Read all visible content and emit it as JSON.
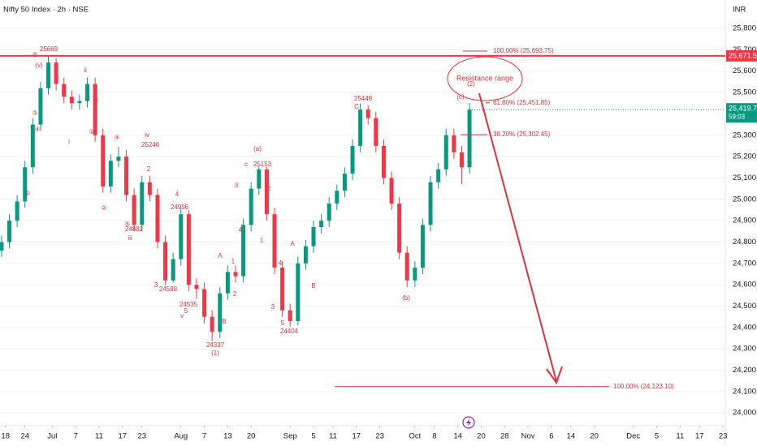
{
  "header": {
    "title": "Nifty 50 Index · 2h · NSE",
    "currency": "INR"
  },
  "chart_data": {
    "type": "candlestick",
    "xlim": [
      -0.4,
      185.6
    ],
    "xticks": [
      {
        "value": 1,
        "label": "18"
      },
      {
        "value": 6,
        "label": "24"
      },
      {
        "value": 13,
        "label": "Jul"
      },
      {
        "value": 19,
        "label": "7"
      },
      {
        "value": 25,
        "label": "11"
      },
      {
        "value": 31,
        "label": "17"
      },
      {
        "value": 36,
        "label": "23"
      },
      {
        "value": 46,
        "label": "Aug"
      },
      {
        "value": 52,
        "label": "7"
      },
      {
        "value": 58,
        "label": "13"
      },
      {
        "value": 64,
        "label": "20"
      },
      {
        "value": 74,
        "label": "Sep"
      },
      {
        "value": 80,
        "label": "5"
      },
      {
        "value": 85,
        "label": "11"
      },
      {
        "value": 91,
        "label": "17"
      },
      {
        "value": 97,
        "label": "23"
      },
      {
        "value": 106,
        "label": "Oct"
      },
      {
        "value": 111,
        "label": "8"
      },
      {
        "value": 117,
        "label": "14"
      },
      {
        "value": 123,
        "label": "20"
      },
      {
        "value": 129,
        "label": "28"
      },
      {
        "value": 135,
        "label": "Nov"
      },
      {
        "value": 141,
        "label": "6"
      },
      {
        "value": 146,
        "label": "14"
      },
      {
        "value": 152,
        "label": "20"
      },
      {
        "value": 162,
        "label": "Dec"
      },
      {
        "value": 168,
        "label": "5"
      },
      {
        "value": 174,
        "label": "11"
      },
      {
        "value": 179,
        "label": "17"
      },
      {
        "value": 185,
        "label": "23"
      }
    ],
    "ylim": [
      23940,
      25933
    ],
    "yticks": [
      {
        "value": 24000,
        "label": "24,000.00"
      },
      {
        "value": 24100,
        "label": "24,100.00"
      },
      {
        "value": 24200,
        "label": "24,200.00"
      },
      {
        "value": 24300,
        "label": "24,300.00"
      },
      {
        "value": 24400,
        "label": "24,400.00"
      },
      {
        "value": 24500,
        "label": "24,500.00"
      },
      {
        "value": 24600,
        "label": "24,600.00"
      },
      {
        "value": 24700,
        "label": "24,700.00"
      },
      {
        "value": 24800,
        "label": "24,800.00"
      },
      {
        "value": 24900,
        "label": "24,900.00"
      },
      {
        "value": 25000,
        "label": "25,000.00"
      },
      {
        "value": 25100,
        "label": "25,100.00"
      },
      {
        "value": 25200,
        "label": "25,200.00"
      },
      {
        "value": 25300,
        "label": "25,300.00"
      },
      {
        "value": 25500,
        "label": "25,500.00"
      },
      {
        "value": 25600,
        "label": "25,600.00"
      },
      {
        "value": 25700,
        "label": "25,700.00"
      },
      {
        "value": 25800,
        "label": "25,800.00"
      }
    ],
    "up_color": "#089981",
    "down_color": "#f23645",
    "x": [
      0,
      2,
      4,
      6,
      8,
      10,
      12,
      14,
      16,
      18,
      20,
      22,
      24,
      26,
      28,
      30,
      32,
      34,
      36,
      38,
      40,
      42,
      44,
      46,
      48,
      50,
      52,
      54,
      56,
      58,
      60,
      62,
      64,
      66,
      68,
      70,
      72,
      74,
      76,
      78,
      80,
      82,
      84,
      86,
      88,
      90,
      92,
      94,
      96,
      98,
      100,
      102,
      104,
      106,
      108,
      110,
      112,
      114,
      116,
      118,
      120
    ],
    "open": [
      24760,
      24800,
      24900,
      24990,
      25150,
      25350,
      25520,
      25640,
      25540,
      25480,
      25450,
      25460,
      25540,
      25300,
      25060,
      25180,
      25200,
      25020,
      24880,
      25080,
      25020,
      24800,
      24620,
      24720,
      24930,
      24600,
      24580,
      24450,
      24380,
      24560,
      24660,
      24640,
      24880,
      25050,
      25140,
      24930,
      24680,
      24480,
      24430,
      24700,
      24780,
      24870,
      24900,
      24980,
      25040,
      25120,
      25250,
      25420,
      25380,
      25250,
      25100,
      24980,
      24750,
      24620,
      24680,
      24880,
      25080,
      25140,
      25300,
      25220,
      25150
    ],
    "high": [
      24830,
      24930,
      25020,
      25180,
      25380,
      25550,
      25669,
      25660,
      25570,
      25510,
      25490,
      25570,
      25570,
      25330,
      25210,
      25246,
      25230,
      25050,
      25110,
      25110,
      25050,
      24830,
      24750,
      24956,
      24950,
      24630,
      24610,
      24480,
      24590,
      24690,
      24690,
      24910,
      25080,
      25153,
      25150,
      24960,
      24710,
      24510,
      24730,
      24810,
      24900,
      24930,
      25010,
      25070,
      25150,
      25280,
      25449,
      25440,
      25410,
      25280,
      25130,
      25010,
      24780,
      24710,
      24910,
      25110,
      25170,
      25330,
      25330,
      25250,
      25451
    ],
    "low": [
      24730,
      24770,
      24870,
      24960,
      25120,
      25320,
      25490,
      25510,
      25450,
      25420,
      25420,
      25430,
      25270,
      25030,
      25030,
      25150,
      24990,
      24850,
      24850,
      24990,
      24770,
      24598,
      24610,
      24690,
      24570,
      24535,
      24420,
      24337,
      24350,
      24530,
      24610,
      24610,
      24850,
      25020,
      24900,
      24650,
      24450,
      24404,
      24410,
      24670,
      24750,
      24840,
      24870,
      24950,
      25010,
      25090,
      25220,
      25350,
      25220,
      25070,
      24950,
      24720,
      24590,
      24590,
      24650,
      24850,
      25050,
      25110,
      25190,
      25070,
      25120
    ],
    "close": [
      24800,
      24900,
      24990,
      25150,
      25350,
      25520,
      25640,
      25540,
      25480,
      25450,
      25460,
      25540,
      25300,
      25060,
      25180,
      25200,
      25020,
      24880,
      25080,
      25020,
      24800,
      24620,
      24720,
      24930,
      24600,
      24580,
      24450,
      24380,
      24560,
      24660,
      24640,
      24880,
      25050,
      25140,
      24930,
      24680,
      24480,
      24430,
      24700,
      24780,
      24870,
      24900,
      24980,
      25040,
      25120,
      25250,
      25420,
      25380,
      25250,
      25100,
      24980,
      24750,
      24620,
      24680,
      24880,
      25080,
      25140,
      25300,
      25220,
      25150,
      25420
    ],
    "resistance": {
      "value": 25671.5,
      "label": "25,671.50",
      "color": "#f23645"
    },
    "last_price": {
      "value": 25419.75,
      "label": "25,419.75",
      "countdown": "59:03",
      "color": "#089981"
    },
    "fib_levels": [
      {
        "value": 25693.75,
        "label": "100.00% (25,693.75)"
      },
      {
        "value": 25451.85,
        "label": "61.80% (25,451.85)"
      },
      {
        "value": 25302.45,
        "label": "38.20% (25,302.45)"
      },
      {
        "value": 24123.1,
        "label": "100.00% (24,123.10)"
      }
    ],
    "callout": "Resistance range",
    "annotations": [
      "25669",
      "⑤",
      "(v)",
      "ii",
      "③",
      "③",
      "④",
      "i",
      "①",
      "④",
      "iv",
      "25246",
      "2",
      "②",
      "②",
      "4",
      "24956",
      "⑤",
      "24882",
      "iii",
      "3",
      "24598",
      "A",
      "1",
      "2",
      "24535",
      "5",
      "v",
      "B",
      "24337",
      "(1)",
      "(a)",
      "c",
      "25153",
      "3",
      "2",
      "4",
      "1",
      "A",
      "4",
      "B",
      "3",
      "5",
      "24404",
      "25449",
      "C",
      "(b)",
      "(c)",
      "(2)"
    ]
  }
}
